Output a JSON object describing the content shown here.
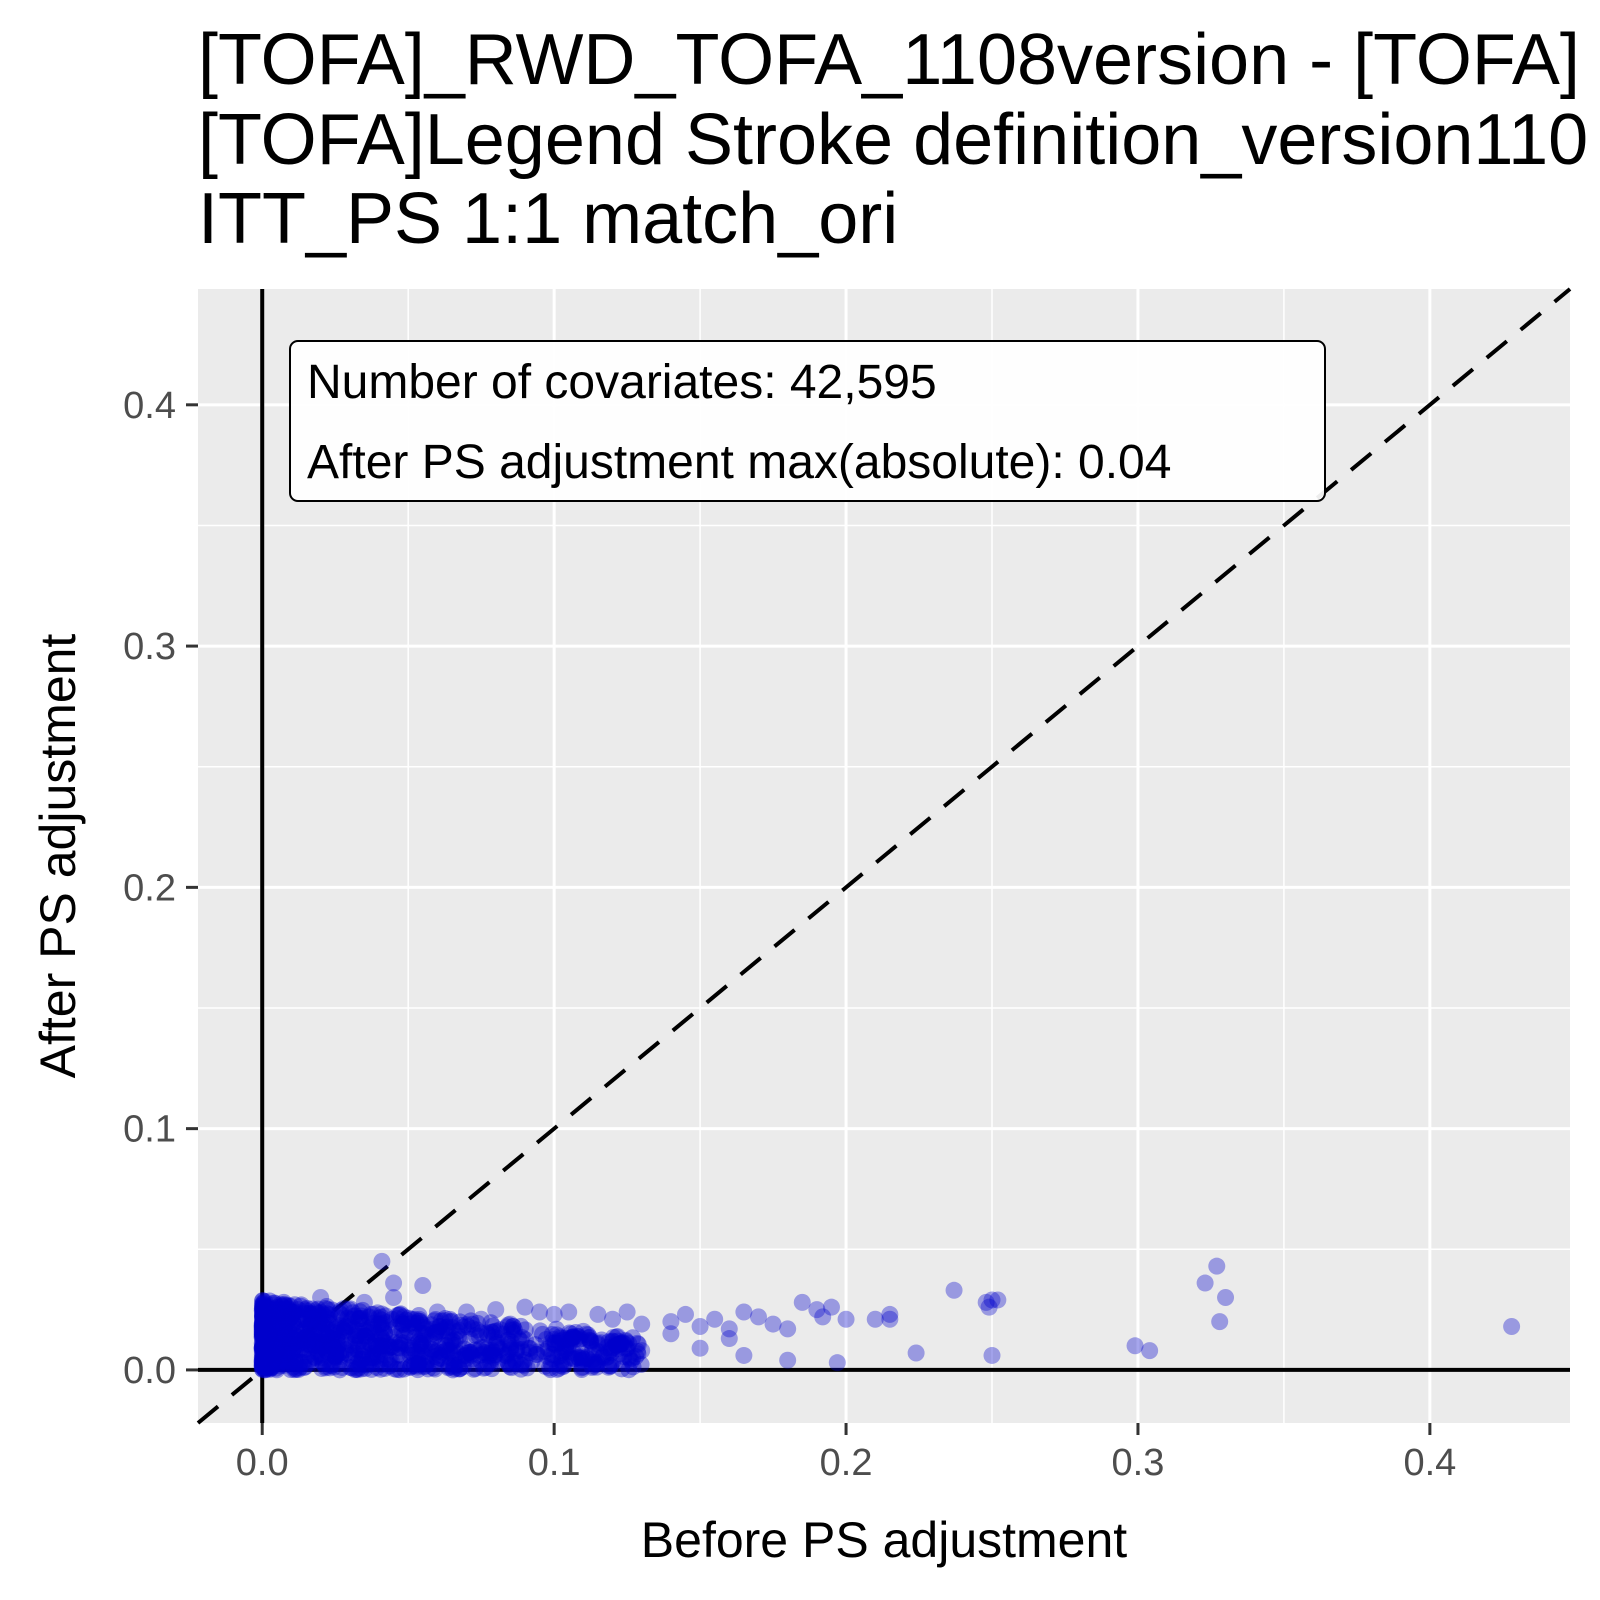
{
  "chart_data": {
    "type": "scatter",
    "title_lines": [
      "[TOFA]_RWD_TOFA_1108version - [TOFA]",
      "[TOFA]Legend Stroke definition_version110",
      "ITT_PS 1:1 match_ori"
    ],
    "xlabel": "Before PS adjustment",
    "ylabel": "After PS adjustment",
    "xlim": [
      -0.022,
      0.448
    ],
    "ylim": [
      -0.022,
      0.448
    ],
    "x_ticks": [
      0.0,
      0.1,
      0.2,
      0.3,
      0.4
    ],
    "y_ticks": [
      0.0,
      0.1,
      0.2,
      0.3,
      0.4
    ],
    "x_tick_labels": [
      "0.0",
      "0.1",
      "0.2",
      "0.3",
      "0.4"
    ],
    "y_tick_labels": [
      "0.0",
      "0.1",
      "0.2",
      "0.3",
      "0.4"
    ],
    "grid": true,
    "reference_lines": {
      "diagonal": "y = x (dashed)",
      "horizontal": 0,
      "vertical": 0
    },
    "annotation": {
      "line1": "Number of covariates: 42,595",
      "line2": "After PS adjustment max(absolute): 0.04"
    },
    "point_color": "#0000CC",
    "panel_color": "#EBEBEB",
    "points": [
      [
        0.041,
        0.045
      ],
      [
        0.045,
        0.036
      ],
      [
        0.055,
        0.035
      ],
      [
        0.045,
        0.03
      ],
      [
        0.02,
        0.03
      ],
      [
        0.035,
        0.028
      ],
      [
        0.06,
        0.024
      ],
      [
        0.07,
        0.024
      ],
      [
        0.08,
        0.025
      ],
      [
        0.09,
        0.026
      ],
      [
        0.095,
        0.024
      ],
      [
        0.1,
        0.023
      ],
      [
        0.105,
        0.024
      ],
      [
        0.115,
        0.023
      ],
      [
        0.12,
        0.021
      ],
      [
        0.125,
        0.024
      ],
      [
        0.13,
        0.019
      ],
      [
        0.14,
        0.02
      ],
      [
        0.145,
        0.023
      ],
      [
        0.15,
        0.018
      ],
      [
        0.155,
        0.021
      ],
      [
        0.16,
        0.017
      ],
      [
        0.165,
        0.024
      ],
      [
        0.17,
        0.022
      ],
      [
        0.175,
        0.019
      ],
      [
        0.18,
        0.017
      ],
      [
        0.185,
        0.028
      ],
      [
        0.19,
        0.025
      ],
      [
        0.195,
        0.026
      ],
      [
        0.192,
        0.022
      ],
      [
        0.2,
        0.021
      ],
      [
        0.21,
        0.021
      ],
      [
        0.215,
        0.023
      ],
      [
        0.215,
        0.021
      ],
      [
        0.237,
        0.033
      ],
      [
        0.248,
        0.028
      ],
      [
        0.25,
        0.029
      ],
      [
        0.252,
        0.029
      ],
      [
        0.249,
        0.026
      ],
      [
        0.323,
        0.036
      ],
      [
        0.327,
        0.043
      ],
      [
        0.33,
        0.03
      ],
      [
        0.328,
        0.02
      ],
      [
        0.428,
        0.018
      ],
      [
        0.299,
        0.01
      ],
      [
        0.304,
        0.008
      ],
      [
        0.224,
        0.007
      ],
      [
        0.25,
        0.006
      ],
      [
        0.165,
        0.006
      ],
      [
        0.18,
        0.004
      ],
      [
        0.197,
        0.003
      ],
      [
        0.113,
        0.001
      ],
      [
        0.13,
        0.008
      ],
      [
        0.15,
        0.009
      ],
      [
        0.16,
        0.013
      ],
      [
        0.14,
        0.015
      ],
      [
        0.12,
        0.012
      ],
      [
        0.11,
        0.016
      ],
      [
        0.085,
        0.019
      ],
      [
        0.075,
        0.021
      ]
    ]
  }
}
